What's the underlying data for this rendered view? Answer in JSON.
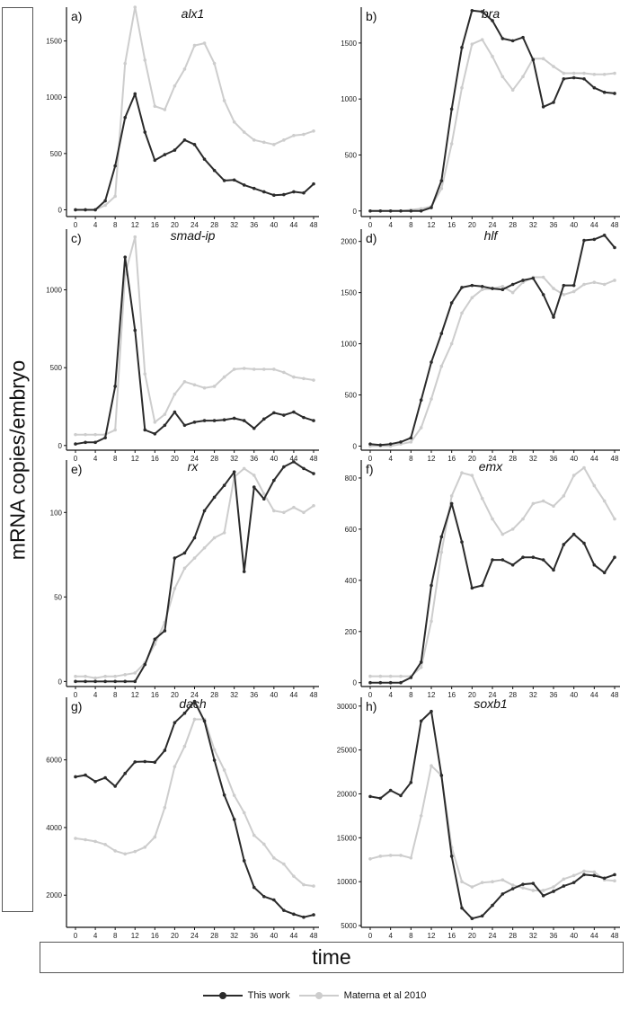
{
  "figure": {
    "ylabel": "mRNA copies/embryo",
    "xlabel": "time",
    "legend": [
      {
        "label": "This work",
        "color": "#2b2b2b"
      },
      {
        "label": "Materna et al 2010",
        "color": "#cdcdcd"
      }
    ]
  },
  "chart_data": [
    {
      "type": "line",
      "panel": "a)",
      "title": "alx1",
      "x": [
        0,
        2,
        4,
        6,
        8,
        10,
        12,
        14,
        16,
        18,
        20,
        22,
        24,
        26,
        28,
        30,
        32,
        34,
        36,
        38,
        40,
        42,
        44,
        46,
        48
      ],
      "xticks": [
        0,
        4,
        8,
        12,
        16,
        20,
        24,
        28,
        32,
        36,
        40,
        44,
        48
      ],
      "ylim": [
        -60,
        1800
      ],
      "yticks": [
        0,
        500,
        1000,
        1500
      ],
      "series": [
        {
          "name": "This work",
          "values": [
            0,
            0,
            0,
            80,
            390,
            820,
            1030,
            690,
            440,
            490,
            530,
            620,
            580,
            450,
            350,
            260,
            265,
            220,
            190,
            160,
            130,
            135,
            160,
            150,
            230
          ]
        },
        {
          "name": "Materna et al 2010",
          "values": [
            0,
            0,
            0,
            40,
            120,
            1300,
            1800,
            1330,
            920,
            890,
            1100,
            1250,
            1460,
            1480,
            1300,
            970,
            780,
            690,
            620,
            600,
            580,
            620,
            660,
            670,
            700
          ]
        }
      ]
    },
    {
      "type": "line",
      "panel": "b)",
      "title": "bra",
      "x": [
        0,
        2,
        4,
        6,
        8,
        10,
        12,
        14,
        16,
        18,
        20,
        22,
        24,
        26,
        28,
        30,
        32,
        34,
        36,
        38,
        40,
        42,
        44,
        46,
        48
      ],
      "xticks": [
        0,
        4,
        8,
        12,
        16,
        20,
        24,
        28,
        32,
        36,
        40,
        44,
        48
      ],
      "ylim": [
        -50,
        1820
      ],
      "yticks": [
        0,
        500,
        1000,
        1500
      ],
      "series": [
        {
          "name": "This work",
          "values": [
            0,
            0,
            0,
            0,
            0,
            0,
            30,
            270,
            910,
            1460,
            1790,
            1780,
            1700,
            1540,
            1520,
            1550,
            1350,
            930,
            970,
            1180,
            1190,
            1180,
            1100,
            1060,
            1050
          ]
        },
        {
          "name": "Materna et al 2010",
          "values": [
            0,
            0,
            0,
            0,
            10,
            20,
            40,
            200,
            600,
            1100,
            1490,
            1530,
            1380,
            1200,
            1080,
            1200,
            1360,
            1360,
            1290,
            1230,
            1230,
            1230,
            1220,
            1220,
            1230
          ]
        }
      ]
    },
    {
      "type": "line",
      "panel": "c)",
      "title": "smad-ip",
      "x": [
        0,
        2,
        4,
        6,
        8,
        10,
        12,
        14,
        16,
        18,
        20,
        22,
        24,
        26,
        28,
        30,
        32,
        34,
        36,
        38,
        40,
        42,
        44,
        46,
        48
      ],
      "xticks": [
        0,
        4,
        8,
        12,
        16,
        20,
        24,
        28,
        32,
        36,
        40,
        44,
        48
      ],
      "ylim": [
        -30,
        1390
      ],
      "yticks": [
        0,
        500,
        1000
      ],
      "series": [
        {
          "name": "This work",
          "values": [
            10,
            20,
            20,
            50,
            380,
            1210,
            740,
            100,
            75,
            130,
            215,
            130,
            150,
            160,
            160,
            165,
            175,
            160,
            110,
            170,
            210,
            195,
            215,
            180,
            160
          ]
        },
        {
          "name": "Materna et al 2010",
          "values": [
            70,
            70,
            70,
            70,
            100,
            1100,
            1340,
            460,
            150,
            200,
            330,
            410,
            390,
            370,
            380,
            440,
            490,
            495,
            490,
            490,
            490,
            470,
            440,
            430,
            420
          ]
        }
      ]
    },
    {
      "type": "line",
      "panel": "d)",
      "title": "hlf",
      "x": [
        0,
        2,
        4,
        6,
        8,
        10,
        12,
        14,
        16,
        18,
        20,
        22,
        24,
        26,
        28,
        30,
        32,
        34,
        36,
        38,
        40,
        42,
        44,
        46,
        48
      ],
      "xticks": [
        0,
        4,
        8,
        12,
        16,
        20,
        24,
        28,
        32,
        36,
        40,
        44,
        48
      ],
      "ylim": [
        -40,
        2120
      ],
      "yticks": [
        0,
        500,
        1000,
        1500,
        2000
      ],
      "series": [
        {
          "name": "This work",
          "values": [
            20,
            10,
            20,
            40,
            80,
            450,
            820,
            1100,
            1400,
            1550,
            1570,
            1560,
            1540,
            1530,
            1580,
            1620,
            1640,
            1480,
            1260,
            1570,
            1570,
            2010,
            2020,
            2060,
            1940
          ]
        },
        {
          "name": "Materna et al 2010",
          "values": [
            0,
            0,
            0,
            20,
            40,
            180,
            460,
            780,
            1000,
            1300,
            1450,
            1530,
            1540,
            1560,
            1500,
            1600,
            1650,
            1650,
            1540,
            1480,
            1510,
            1580,
            1600,
            1580,
            1620
          ]
        }
      ]
    },
    {
      "type": "line",
      "panel": "e)",
      "title": "rx",
      "x": [
        0,
        2,
        4,
        6,
        8,
        10,
        12,
        14,
        16,
        18,
        20,
        22,
        24,
        26,
        28,
        30,
        32,
        34,
        36,
        38,
        40,
        42,
        44,
        46,
        48
      ],
      "xticks": [
        0,
        4,
        8,
        12,
        16,
        20,
        24,
        28,
        32,
        36,
        40,
        44,
        48
      ],
      "ylim": [
        -3,
        131
      ],
      "yticks": [
        0,
        50,
        100
      ],
      "series": [
        {
          "name": "This work",
          "values": [
            0,
            0,
            0,
            0,
            0,
            0,
            0,
            10,
            25,
            30,
            73,
            76,
            85,
            101,
            109,
            116,
            124,
            65,
            115,
            108,
            119,
            127,
            130,
            126,
            123
          ]
        },
        {
          "name": "Materna et al 2010",
          "values": [
            3,
            3,
            2,
            3,
            3,
            4,
            5,
            11,
            22,
            35,
            55,
            67,
            73,
            79,
            85,
            88,
            121,
            126,
            122,
            111,
            101,
            100,
            103,
            100,
            104
          ]
        }
      ]
    },
    {
      "type": "line",
      "panel": "f)",
      "title": "emx",
      "x": [
        0,
        2,
        4,
        6,
        8,
        10,
        12,
        14,
        16,
        18,
        20,
        22,
        24,
        26,
        28,
        30,
        32,
        34,
        36,
        38,
        40,
        42,
        44,
        46,
        48
      ],
      "xticks": [
        0,
        4,
        8,
        12,
        16,
        20,
        24,
        28,
        32,
        36,
        40,
        44,
        48
      ],
      "ylim": [
        -15,
        870
      ],
      "yticks": [
        0,
        200,
        400,
        600,
        800
      ],
      "series": [
        {
          "name": "This work",
          "values": [
            0,
            0,
            0,
            0,
            20,
            80,
            380,
            570,
            700,
            550,
            370,
            380,
            480,
            480,
            460,
            490,
            490,
            480,
            440,
            540,
            580,
            545,
            460,
            430,
            490
          ]
        },
        {
          "name": "Materna et al 2010",
          "values": [
            25,
            25,
            25,
            25,
            25,
            60,
            240,
            510,
            730,
            820,
            810,
            720,
            640,
            580,
            600,
            640,
            700,
            710,
            690,
            730,
            810,
            840,
            770,
            710,
            640
          ]
        }
      ]
    },
    {
      "type": "line",
      "panel": "g)",
      "title": "dach",
      "x": [
        0,
        2,
        4,
        6,
        8,
        10,
        12,
        14,
        16,
        18,
        20,
        22,
        24,
        26,
        28,
        30,
        32,
        34,
        36,
        38,
        40,
        42,
        44,
        46,
        48
      ],
      "xticks": [
        0,
        4,
        8,
        12,
        16,
        20,
        24,
        28,
        32,
        36,
        40,
        44,
        48
      ],
      "ylim": [
        1050,
        7850
      ],
      "yticks": [
        2000,
        4000,
        6000
      ],
      "series": [
        {
          "name": "This work",
          "values": [
            5500,
            5550,
            5360,
            5470,
            5220,
            5600,
            5940,
            5950,
            5930,
            6280,
            7100,
            7380,
            7730,
            7150,
            5990,
            4960,
            4240,
            3020,
            2230,
            1960,
            1860,
            1550,
            1440,
            1350,
            1420
          ]
        },
        {
          "name": "Materna et al 2010",
          "values": [
            3680,
            3640,
            3590,
            3500,
            3310,
            3220,
            3290,
            3420,
            3720,
            4590,
            5800,
            6400,
            7200,
            7200,
            6300,
            5700,
            4950,
            4440,
            3770,
            3510,
            3100,
            2920,
            2560,
            2310,
            2270
          ]
        }
      ]
    },
    {
      "type": "line",
      "panel": "h)",
      "title": "soxb1",
      "x": [
        0,
        2,
        4,
        6,
        8,
        10,
        12,
        14,
        16,
        18,
        20,
        22,
        24,
        26,
        28,
        30,
        32,
        34,
        36,
        38,
        40,
        42,
        44,
        46,
        48
      ],
      "xticks": [
        0,
        4,
        8,
        12,
        16,
        20,
        24,
        28,
        32,
        36,
        40,
        44,
        48
      ],
      "ylim": [
        4800,
        31000
      ],
      "yticks": [
        5000,
        10000,
        15000,
        20000,
        25000,
        30000
      ],
      "series": [
        {
          "name": "This work",
          "values": [
            19700,
            19500,
            20400,
            19800,
            21300,
            28300,
            29400,
            22100,
            12900,
            7000,
            5800,
            6100,
            7300,
            8600,
            9200,
            9700,
            9800,
            8400,
            8900,
            9500,
            9900,
            10800,
            10700,
            10400,
            10800
          ]
        },
        {
          "name": "Materna et al 2010",
          "values": [
            12600,
            12900,
            13000,
            13000,
            12700,
            17500,
            23200,
            22100,
            13900,
            10000,
            9400,
            9900,
            10000,
            10200,
            9600,
            9300,
            9000,
            9000,
            9400,
            10300,
            10700,
            11200,
            11100,
            10200,
            10100
          ]
        }
      ]
    }
  ]
}
